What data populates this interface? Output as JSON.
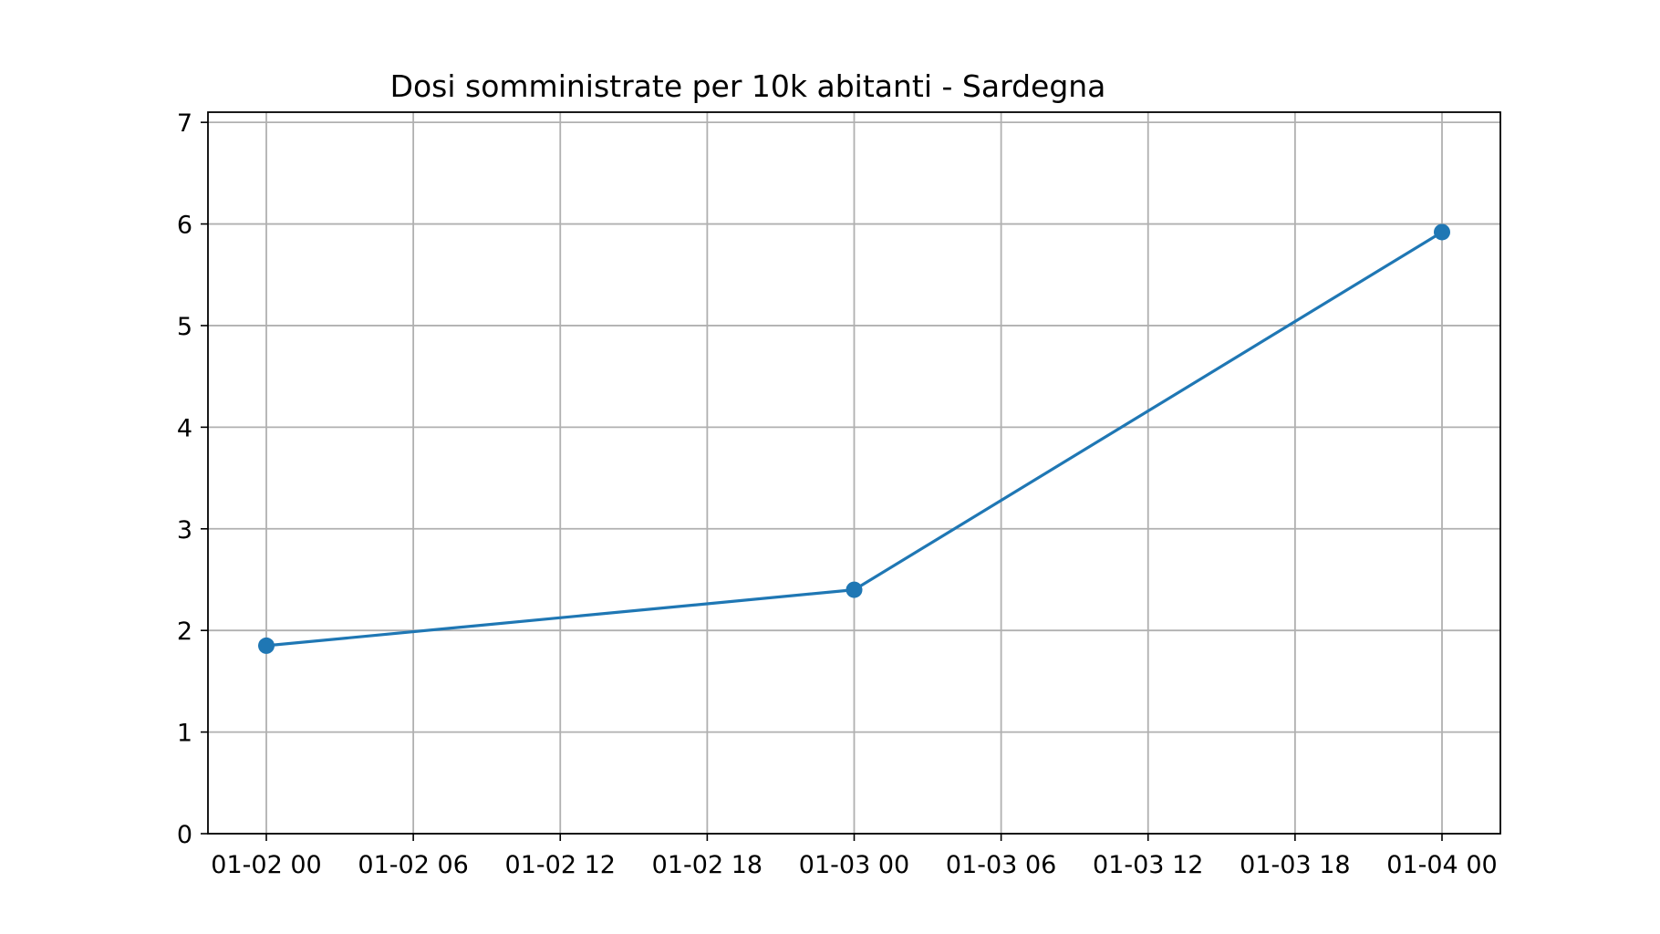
{
  "chart_data": {
    "type": "line",
    "title": "Dosi somministrate per 10k abitanti - Sardegna",
    "xlabel": "",
    "ylabel": "",
    "x_ticks": [
      "01-02 00",
      "01-02 06",
      "01-02 12",
      "01-02 18",
      "01-03 00",
      "01-03 06",
      "01-03 12",
      "01-03 18",
      "01-04 00"
    ],
    "y_ticks": [
      "0",
      "1",
      "2",
      "3",
      "4",
      "5",
      "6",
      "7"
    ],
    "xlim": [
      "01-01 21:37",
      "01-04 02:23"
    ],
    "ylim": [
      0,
      7.1
    ],
    "grid": true,
    "series": [
      {
        "x": [
          "01-02 00:00",
          "01-03 00:00",
          "01-04 00:00"
        ],
        "y": [
          1.85,
          2.4,
          5.92
        ],
        "color": "#1f77b4",
        "marker": "circle"
      }
    ]
  }
}
